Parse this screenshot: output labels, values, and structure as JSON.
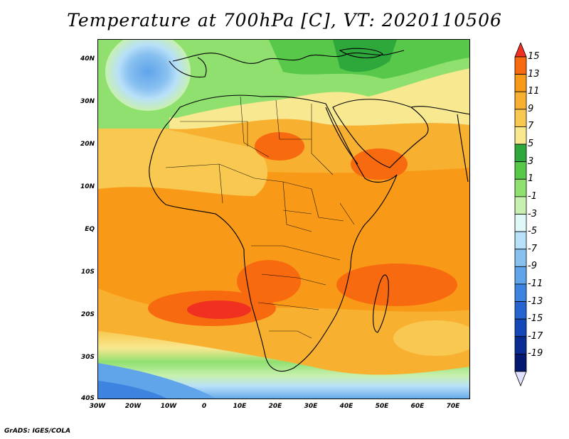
{
  "title": "Temperature at 700hPa [C], VT: 2020110506",
  "credit": "GrADS: IGES/COLA",
  "lat_labels": [
    "40N",
    "30N",
    "20N",
    "10N",
    "EQ",
    "10S",
    "20S",
    "30S",
    "40S"
  ],
  "lon_labels": [
    "30W",
    "20W",
    "10W",
    "0",
    "10E",
    "20E",
    "30E",
    "40E",
    "50E",
    "60E",
    "70E"
  ],
  "colorbar": {
    "labels": [
      "15",
      "13",
      "11",
      "9",
      "7",
      "5",
      "3",
      "1",
      "-1",
      "-3",
      "-5",
      "-7",
      "-9",
      "-11",
      "-13",
      "-15",
      "-17",
      "-19"
    ],
    "colors": [
      "#f03020",
      "#f86a10",
      "#f89a18",
      "#f8b030",
      "#f8c850",
      "#f8e890",
      "#2ea83a",
      "#58c84a",
      "#90e070",
      "#c8f0b0",
      "#e0f8f8",
      "#b8e0f8",
      "#88c0f0",
      "#60a4ea",
      "#3c84e0",
      "#2864d0",
      "#1448b8",
      "#082c90",
      "#041870",
      "#e0e0ff"
    ]
  },
  "map": {
    "region": "Africa",
    "field": "Temperature at 700hPa",
    "units": "C",
    "valid_time": "2020110506"
  }
}
